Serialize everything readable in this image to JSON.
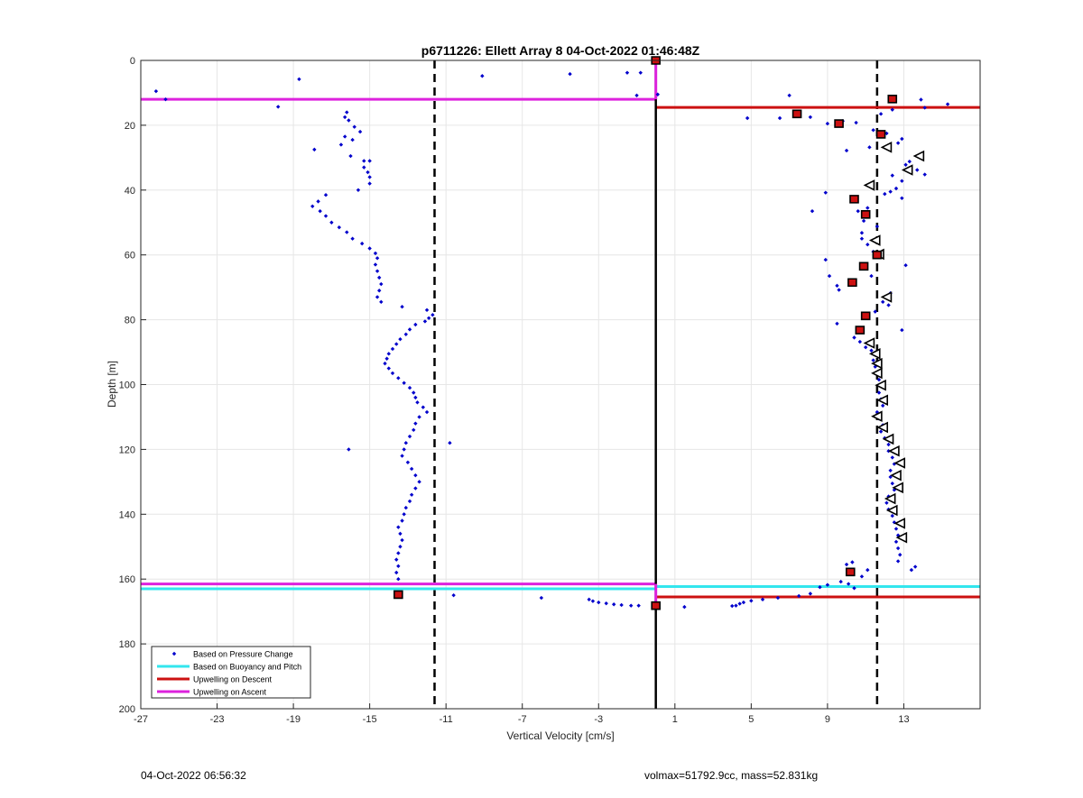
{
  "chart_data": {
    "type": "scatter",
    "title": "p6711226: Ellett Array 8 04-Oct-2022 01:46:48Z",
    "xlabel": "Vertical Velocity [cm/s]",
    "ylabel": "Depth [m]",
    "xlim": [
      -27,
      17
    ],
    "ylim": [
      0,
      200
    ],
    "y_reversed": true,
    "grid": true,
    "x_ticks": [
      -27,
      -23,
      -19,
      -15,
      -11,
      -7,
      -3,
      1,
      5,
      9,
      13
    ],
    "y_ticks": [
      0,
      20,
      40,
      60,
      80,
      100,
      120,
      140,
      160,
      180,
      200
    ],
    "colors": {
      "pressure": "#0000cc",
      "buoyancy": "#33e6ee",
      "descent": "#cc1111",
      "ascent": "#dd22dd",
      "dashed": "#000000"
    },
    "legend": {
      "position": "bottom-left",
      "entries": [
        {
          "label": "Based on Pressure Change",
          "style": "dot",
          "color": "#0000cc"
        },
        {
          "label": "Based on Buoyancy and Pitch",
          "style": "line",
          "color": "#33e6ee"
        },
        {
          "label": "Upwelling on Descent",
          "style": "line",
          "color": "#cc1111"
        },
        {
          "label": "Upwelling on Ascent",
          "style": "line",
          "color": "#dd22dd"
        }
      ]
    },
    "reference_lines": {
      "vertical_solid": 0,
      "vertical_dashed": [
        -11.6,
        11.6
      ],
      "magenta_ascent": [
        {
          "depth": 12,
          "x": [
            -27,
            0
          ]
        },
        {
          "depth": 161.5,
          "x": [
            -27,
            0
          ]
        }
      ],
      "red_descent": [
        {
          "depth": 14.5,
          "x": [
            0,
            17
          ]
        },
        {
          "depth": 165.5,
          "x": [
            0,
            17
          ]
        }
      ],
      "cyan_buoyancy": [
        {
          "depth": 163,
          "x": [
            -27,
            0
          ]
        },
        {
          "depth": 162.3,
          "x": [
            0,
            17
          ]
        }
      ],
      "magenta_vertical": {
        "x": 0,
        "depth": [
          0,
          12
        ]
      },
      "magenta_vertical_bottom": {
        "x": 0,
        "depth": [
          161.5,
          168
        ]
      }
    },
    "series": [
      {
        "name": "Based on Pressure Change",
        "points": [
          [
            -26.2,
            9.5
          ],
          [
            -25.7,
            12
          ],
          [
            -18.7,
            5.8
          ],
          [
            -19.8,
            14.3
          ],
          [
            -16.2,
            16
          ],
          [
            -16.3,
            17.5
          ],
          [
            -16.1,
            18.5
          ],
          [
            -15.8,
            20.5
          ],
          [
            -15.5,
            22
          ],
          [
            -16.3,
            23.5
          ],
          [
            -15.9,
            24.5
          ],
          [
            -16.5,
            26
          ],
          [
            -17.9,
            27.5
          ],
          [
            -16.0,
            29.5
          ],
          [
            -15.3,
            31
          ],
          [
            -15.0,
            31
          ],
          [
            -15.3,
            33
          ],
          [
            -15.1,
            34.5
          ],
          [
            -15.0,
            36
          ],
          [
            -15.0,
            38
          ],
          [
            -15.6,
            40
          ],
          [
            -17.3,
            41.5
          ],
          [
            -17.7,
            43.5
          ],
          [
            -18.0,
            45
          ],
          [
            -17.6,
            46.5
          ],
          [
            -17.3,
            48
          ],
          [
            -17.0,
            50
          ],
          [
            -16.6,
            51.5
          ],
          [
            -16.2,
            53
          ],
          [
            -15.9,
            55
          ],
          [
            -15.4,
            56.5
          ],
          [
            -15.0,
            58
          ],
          [
            -14.7,
            59.5
          ],
          [
            -14.6,
            61
          ],
          [
            -14.7,
            63
          ],
          [
            -14.6,
            65
          ],
          [
            -14.5,
            67
          ],
          [
            -14.4,
            69
          ],
          [
            -14.5,
            71
          ],
          [
            -14.6,
            73
          ],
          [
            -14.4,
            74.5
          ],
          [
            -13.3,
            76
          ],
          [
            -12.0,
            77
          ],
          [
            -11.7,
            78.5
          ],
          [
            -11.9,
            79.5
          ],
          [
            -12.1,
            80.5
          ],
          [
            -12.6,
            81.5
          ],
          [
            -12.9,
            83
          ],
          [
            -13.1,
            84.5
          ],
          [
            -13.4,
            86
          ],
          [
            -13.6,
            87.5
          ],
          [
            -13.8,
            89
          ],
          [
            -14.0,
            90.5
          ],
          [
            -14.1,
            92
          ],
          [
            -14.2,
            93.5
          ],
          [
            -14.0,
            95
          ],
          [
            -13.8,
            96.5
          ],
          [
            -13.5,
            98
          ],
          [
            -13.2,
            99.5
          ],
          [
            -12.9,
            101
          ],
          [
            -12.7,
            102.5
          ],
          [
            -12.6,
            104
          ],
          [
            -12.5,
            105.5
          ],
          [
            -12.2,
            107
          ],
          [
            -12.0,
            108.5
          ],
          [
            -12.4,
            110
          ],
          [
            -12.6,
            112
          ],
          [
            -12.7,
            114
          ],
          [
            -12.9,
            116
          ],
          [
            -13.1,
            118
          ],
          [
            -13.2,
            120
          ],
          [
            -16.1,
            120
          ],
          [
            -10.8,
            118
          ],
          [
            -13.3,
            122
          ],
          [
            -13.0,
            124
          ],
          [
            -12.8,
            126
          ],
          [
            -12.6,
            128
          ],
          [
            -12.4,
            130
          ],
          [
            -12.6,
            132
          ],
          [
            -12.8,
            134
          ],
          [
            -12.9,
            136
          ],
          [
            -13.1,
            138
          ],
          [
            -13.2,
            140
          ],
          [
            -13.3,
            142
          ],
          [
            -13.5,
            144
          ],
          [
            -13.4,
            146
          ],
          [
            -13.3,
            148
          ],
          [
            -13.4,
            150
          ],
          [
            -13.5,
            152
          ],
          [
            -13.6,
            154
          ],
          [
            -13.5,
            156
          ],
          [
            -13.6,
            158
          ],
          [
            -13.5,
            160
          ],
          [
            -10.6,
            165
          ],
          [
            -6.0,
            165.8
          ],
          [
            -3.5,
            166.3
          ],
          [
            -3.3,
            166.8
          ],
          [
            -3.0,
            167.2
          ],
          [
            -2.6,
            167.5
          ],
          [
            -2.2,
            167.8
          ],
          [
            -1.8,
            168
          ],
          [
            -1.3,
            168.2
          ],
          [
            -0.9,
            168.2
          ],
          [
            1.5,
            168.6
          ],
          [
            -9.1,
            4.8
          ],
          [
            -4.5,
            4.2
          ],
          [
            -1.5,
            3.8
          ],
          [
            -0.8,
            3.8
          ],
          [
            -1.0,
            10.8
          ],
          [
            0.1,
            10.5
          ],
          [
            7.0,
            10.8
          ],
          [
            4.8,
            17.8
          ],
          [
            6.5,
            17.8
          ],
          [
            8.1,
            17.5
          ],
          [
            9.0,
            19.5
          ],
          [
            10.5,
            19.2
          ],
          [
            9.8,
            18.7
          ],
          [
            11.8,
            16.5
          ],
          [
            12.4,
            15.2
          ],
          [
            13.9,
            12.1
          ],
          [
            14.1,
            14.6
          ],
          [
            15.3,
            13.5
          ],
          [
            11.4,
            21.5
          ],
          [
            12.1,
            22.5
          ],
          [
            12.9,
            24.2
          ],
          [
            12.7,
            25.5
          ],
          [
            11.2,
            26.8
          ],
          [
            10.0,
            27.8
          ],
          [
            13.3,
            31.2
          ],
          [
            13.1,
            32.2
          ],
          [
            13.7,
            33.8
          ],
          [
            14.1,
            35.2
          ],
          [
            12.4,
            35.5
          ],
          [
            12.9,
            37.2
          ],
          [
            12.6,
            39.5
          ],
          [
            12.3,
            40.5
          ],
          [
            12.0,
            41.2
          ],
          [
            8.9,
            40.8
          ],
          [
            8.2,
            46.5
          ],
          [
            12.9,
            42.5
          ],
          [
            11.1,
            45.5
          ],
          [
            10.6,
            46.5
          ],
          [
            10.9,
            49.5
          ],
          [
            11.6,
            51.2
          ],
          [
            10.8,
            53.2
          ],
          [
            10.8,
            55
          ],
          [
            11.1,
            56.8
          ],
          [
            11.4,
            59
          ],
          [
            8.9,
            61.5
          ],
          [
            9.1,
            66.5
          ],
          [
            10.3,
            67.8
          ],
          [
            11.3,
            66.5
          ],
          [
            13.1,
            63.2
          ],
          [
            9.5,
            69.5
          ],
          [
            9.6,
            70.8
          ],
          [
            12.3,
            71.8
          ],
          [
            11.9,
            74.5
          ],
          [
            12.2,
            75.5
          ],
          [
            11.5,
            77.5
          ],
          [
            12.9,
            83.2
          ],
          [
            9.5,
            81.2
          ],
          [
            10.4,
            85.5
          ],
          [
            10.7,
            86.8
          ],
          [
            11.0,
            88.5
          ],
          [
            11.3,
            89.5
          ],
          [
            11.4,
            92.5
          ],
          [
            11.5,
            94.5
          ],
          [
            11.6,
            96.5
          ],
          [
            11.7,
            98.5
          ],
          [
            11.8,
            100.5
          ],
          [
            11.7,
            102.5
          ],
          [
            11.8,
            104.5
          ],
          [
            11.9,
            106.5
          ],
          [
            11.6,
            108.5
          ],
          [
            11.7,
            110.5
          ],
          [
            11.9,
            112.5
          ],
          [
            11.8,
            114.5
          ],
          [
            12.0,
            116.5
          ],
          [
            12.2,
            118.5
          ],
          [
            12.2,
            120.5
          ],
          [
            12.4,
            122.5
          ],
          [
            12.5,
            124.5
          ],
          [
            12.3,
            126.5
          ],
          [
            12.3,
            128.5
          ],
          [
            12.4,
            130.5
          ],
          [
            12.5,
            132.5
          ],
          [
            12.2,
            134.5
          ],
          [
            12.1,
            136.5
          ],
          [
            12.2,
            138.5
          ],
          [
            12.4,
            140.5
          ],
          [
            12.5,
            142.5
          ],
          [
            12.6,
            144.5
          ],
          [
            12.7,
            146.5
          ],
          [
            12.6,
            148.5
          ],
          [
            12.7,
            150.5
          ],
          [
            12.8,
            152.5
          ],
          [
            12.7,
            154.5
          ],
          [
            13.6,
            156.2
          ],
          [
            13.4,
            157.2
          ],
          [
            10.3,
            154.8
          ],
          [
            10.0,
            155.5
          ],
          [
            11.1,
            157.2
          ],
          [
            10.8,
            159.2
          ],
          [
            9.0,
            161.8
          ],
          [
            8.6,
            162.5
          ],
          [
            9.7,
            160.8
          ],
          [
            10.4,
            162.8
          ],
          [
            10.1,
            161.5
          ],
          [
            8.1,
            164.5
          ],
          [
            7.5,
            165.2
          ],
          [
            6.4,
            165.8
          ],
          [
            5.6,
            166.3
          ],
          [
            5.0,
            166.7
          ],
          [
            4.6,
            167.2
          ],
          [
            4.4,
            167.6
          ],
          [
            4.2,
            168.2
          ],
          [
            4.0,
            168.3
          ]
        ]
      },
      {
        "name": "Red markers",
        "points": [
          [
            0,
            0
          ],
          [
            12.4,
            11.9
          ],
          [
            7.4,
            16.5
          ],
          [
            9.6,
            19.5
          ],
          [
            11.8,
            22.8
          ],
          [
            10.4,
            42.8
          ],
          [
            11.0,
            47.5
          ],
          [
            11.6,
            60
          ],
          [
            10.9,
            63.5
          ],
          [
            10.3,
            68.5
          ],
          [
            11.0,
            78.8
          ],
          [
            10.7,
            83.2
          ],
          [
            10.2,
            157.8
          ],
          [
            -13.5,
            164.8
          ],
          [
            0,
            168.2
          ]
        ]
      },
      {
        "name": "Open triangles",
        "points": [
          [
            12.1,
            26.8
          ],
          [
            13.8,
            29.5
          ],
          [
            13.2,
            33.8
          ],
          [
            11.2,
            38.5
          ],
          [
            11.5,
            55.5
          ],
          [
            11.7,
            59.8
          ],
          [
            12.1,
            73
          ],
          [
            11.2,
            87.2
          ],
          [
            11.5,
            90.5
          ],
          [
            11.6,
            93.5
          ],
          [
            11.6,
            96.5
          ],
          [
            11.8,
            100.2
          ],
          [
            11.9,
            104.8
          ],
          [
            11.6,
            109.8
          ],
          [
            11.9,
            113.2
          ],
          [
            12.2,
            116.8
          ],
          [
            12.5,
            120.5
          ],
          [
            12.8,
            124.2
          ],
          [
            12.6,
            128
          ],
          [
            12.7,
            131.8
          ],
          [
            12.3,
            135.2
          ],
          [
            12.4,
            138.8
          ],
          [
            12.8,
            142.8
          ],
          [
            12.9,
            147.2
          ]
        ]
      }
    ]
  },
  "footer": {
    "left": "04-Oct-2022 06:56:32",
    "right": "volmax=51792.9cc, mass=52.831kg"
  }
}
